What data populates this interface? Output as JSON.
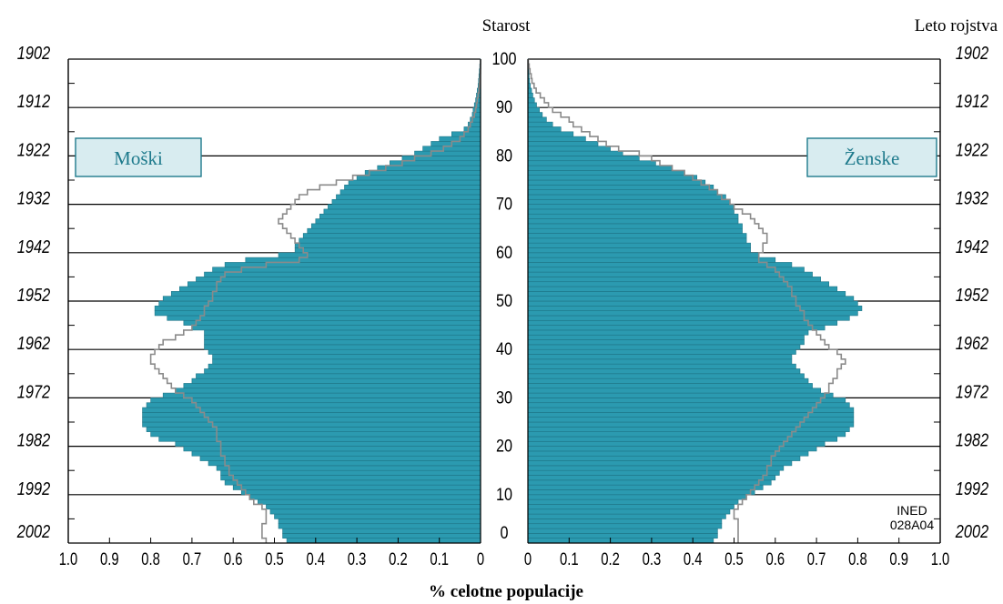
{
  "chart_data": {
    "type": "bar",
    "title": "Starost",
    "right_axis_title": "Leto rojstva",
    "xlabel": "% celotne populacije",
    "xlim": [
      0,
      1.0
    ],
    "x_ticks": [
      "1.0",
      "0.9",
      "0.8",
      "0.7",
      "0.6",
      "0.5",
      "0.4",
      "0.3",
      "0.2",
      "0.1",
      "0",
      "0",
      "0.1",
      "0.2",
      "0.3",
      "0.4",
      "0.5",
      "0.6",
      "0.7",
      "0.8",
      "0.9",
      "1.0"
    ],
    "age_ticks": [
      "100",
      "90",
      "80",
      "70",
      "60",
      "50",
      "40",
      "30",
      "20",
      "10",
      "0"
    ],
    "year_ticks": [
      "1902",
      "1912",
      "1922",
      "1932",
      "1942",
      "1952",
      "1962",
      "1972",
      "1982",
      "1992",
      "2002"
    ],
    "annotation": [
      "INED",
      "028A04"
    ],
    "colors": {
      "bar_fill": "#2b9ab0",
      "bar_edge": "#1e7486",
      "outline": "#8a8a8a",
      "label_box": "#d8ecf0",
      "label_text": "#1e7a8c"
    },
    "series": [
      {
        "name": "Moški",
        "side": "left",
        "age_start": 0,
        "values": [
          0.47,
          0.48,
          0.48,
          0.49,
          0.49,
          0.5,
          0.51,
          0.52,
          0.54,
          0.56,
          0.58,
          0.6,
          0.62,
          0.63,
          0.63,
          0.64,
          0.66,
          0.68,
          0.7,
          0.72,
          0.74,
          0.78,
          0.8,
          0.81,
          0.82,
          0.82,
          0.82,
          0.82,
          0.81,
          0.8,
          0.77,
          0.74,
          0.72,
          0.7,
          0.69,
          0.67,
          0.66,
          0.65,
          0.65,
          0.66,
          0.67,
          0.67,
          0.67,
          0.67,
          0.7,
          0.72,
          0.76,
          0.79,
          0.79,
          0.78,
          0.77,
          0.75,
          0.73,
          0.71,
          0.69,
          0.67,
          0.65,
          0.62,
          0.57,
          0.49,
          0.45,
          0.45,
          0.44,
          0.43,
          0.42,
          0.41,
          0.4,
          0.39,
          0.38,
          0.37,
          0.36,
          0.35,
          0.34,
          0.33,
          0.32,
          0.3,
          0.28,
          0.25,
          0.22,
          0.19,
          0.16,
          0.14,
          0.12,
          0.1,
          0.07,
          0.04,
          0.03,
          0.025,
          0.02,
          0.018,
          0.015,
          0.012,
          0.01,
          0.008,
          0.006,
          0.005,
          0.004,
          0.003,
          0.002,
          0.001
        ]
      },
      {
        "name": "Ženske",
        "side": "right",
        "age_start": 0,
        "values": [
          0.45,
          0.46,
          0.46,
          0.47,
          0.47,
          0.48,
          0.49,
          0.5,
          0.51,
          0.53,
          0.55,
          0.57,
          0.59,
          0.6,
          0.61,
          0.62,
          0.64,
          0.66,
          0.68,
          0.7,
          0.72,
          0.75,
          0.77,
          0.78,
          0.79,
          0.79,
          0.79,
          0.79,
          0.78,
          0.77,
          0.74,
          0.71,
          0.69,
          0.68,
          0.67,
          0.66,
          0.65,
          0.64,
          0.64,
          0.65,
          0.66,
          0.67,
          0.67,
          0.68,
          0.72,
          0.75,
          0.78,
          0.8,
          0.81,
          0.8,
          0.79,
          0.77,
          0.75,
          0.73,
          0.71,
          0.69,
          0.67,
          0.64,
          0.6,
          0.56,
          0.54,
          0.54,
          0.53,
          0.53,
          0.52,
          0.52,
          0.51,
          0.51,
          0.5,
          0.5,
          0.49,
          0.48,
          0.46,
          0.45,
          0.43,
          0.41,
          0.38,
          0.35,
          0.31,
          0.27,
          0.23,
          0.2,
          0.17,
          0.14,
          0.11,
          0.08,
          0.06,
          0.045,
          0.035,
          0.028,
          0.021,
          0.016,
          0.012,
          0.009,
          0.006,
          0.004,
          0.003,
          0.002,
          0.001,
          0.0005
        ]
      }
    ],
    "outline_series": [
      {
        "side": "left",
        "values": [
          0.52,
          0.53,
          0.53,
          0.53,
          0.52,
          0.52,
          0.52,
          0.53,
          0.55,
          0.56,
          0.57,
          0.58,
          0.59,
          0.6,
          0.61,
          0.61,
          0.62,
          0.62,
          0.63,
          0.63,
          0.63,
          0.64,
          0.64,
          0.64,
          0.65,
          0.66,
          0.67,
          0.68,
          0.69,
          0.7,
          0.72,
          0.74,
          0.75,
          0.76,
          0.77,
          0.78,
          0.79,
          0.8,
          0.8,
          0.79,
          0.78,
          0.77,
          0.74,
          0.72,
          0.7,
          0.69,
          0.68,
          0.67,
          0.67,
          0.66,
          0.65,
          0.65,
          0.64,
          0.64,
          0.63,
          0.62,
          0.58,
          0.52,
          0.44,
          0.42,
          0.43,
          0.44,
          0.45,
          0.46,
          0.47,
          0.48,
          0.49,
          0.48,
          0.47,
          0.46,
          0.45,
          0.44,
          0.42,
          0.39,
          0.35,
          0.31,
          0.27,
          0.23,
          0.19,
          0.16,
          0.12,
          0.09,
          0.07,
          0.05,
          0.04,
          0.03,
          0.025,
          0.02,
          0.015,
          0.012,
          0.01,
          0.008,
          0.006,
          0.004,
          0.003,
          0.002,
          0.001,
          0.0005,
          0.0003,
          0.0001
        ]
      },
      {
        "side": "right",
        "values": [
          0.51,
          0.51,
          0.51,
          0.51,
          0.51,
          0.5,
          0.5,
          0.51,
          0.52,
          0.53,
          0.54,
          0.55,
          0.56,
          0.57,
          0.58,
          0.58,
          0.59,
          0.59,
          0.6,
          0.61,
          0.62,
          0.63,
          0.64,
          0.65,
          0.66,
          0.67,
          0.68,
          0.69,
          0.7,
          0.71,
          0.72,
          0.73,
          0.73,
          0.74,
          0.75,
          0.75,
          0.76,
          0.77,
          0.76,
          0.75,
          0.73,
          0.72,
          0.71,
          0.7,
          0.69,
          0.68,
          0.67,
          0.67,
          0.66,
          0.65,
          0.65,
          0.64,
          0.64,
          0.63,
          0.62,
          0.61,
          0.6,
          0.58,
          0.56,
          0.56,
          0.57,
          0.57,
          0.58,
          0.58,
          0.57,
          0.56,
          0.55,
          0.54,
          0.52,
          0.5,
          0.49,
          0.47,
          0.46,
          0.44,
          0.42,
          0.4,
          0.38,
          0.35,
          0.32,
          0.3,
          0.27,
          0.22,
          0.19,
          0.17,
          0.15,
          0.13,
          0.11,
          0.1,
          0.08,
          0.06,
          0.05,
          0.04,
          0.03,
          0.02,
          0.015,
          0.01,
          0.008,
          0.005,
          0.003,
          0.001
        ]
      }
    ]
  }
}
